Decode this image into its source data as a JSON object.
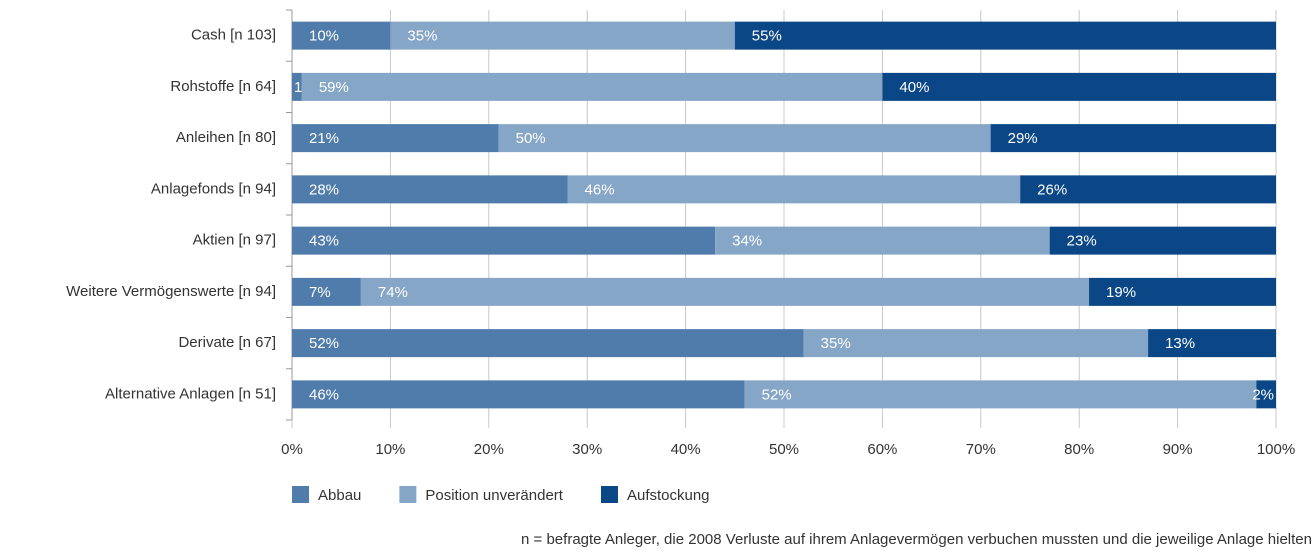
{
  "chart_data": {
    "type": "bar",
    "orientation": "horizontal",
    "stacked": true,
    "categories": [
      "Cash [n 103]",
      "Rohstoffe [n 64]",
      "Anleihen [n 80]",
      "Anlagefonds [n 94]",
      "Aktien [n 97]",
      "Weitere Vermögenswerte [n 94]",
      "Derivate [n 67]",
      "Alternative Anlagen [n 51]"
    ],
    "series": [
      {
        "name": "Abbau",
        "color": "#4f7cab",
        "values": [
          10,
          1,
          21,
          28,
          43,
          7,
          52,
          46
        ],
        "value_labels": [
          "10%",
          "1%",
          "21%",
          "28%",
          "43%",
          "7%",
          "52%",
          "46%"
        ]
      },
      {
        "name": "Position unverändert",
        "color": "#86a6c8",
        "values": [
          35,
          59,
          50,
          46,
          34,
          74,
          35,
          52
        ],
        "value_labels": [
          "35%",
          "59%",
          "50%",
          "46%",
          "34%",
          "74%",
          "35%",
          "52%"
        ]
      },
      {
        "name": "Aufstockung",
        "color": "#0b4786",
        "values": [
          55,
          40,
          29,
          26,
          23,
          19,
          13,
          2
        ],
        "value_labels": [
          "55%",
          "40%",
          "29%",
          "26%",
          "23%",
          "19%",
          "13%",
          "2%"
        ]
      }
    ],
    "xlim": [
      0,
      100
    ],
    "xticks": [
      {
        "value": 0,
        "label": "0%"
      },
      {
        "value": 10,
        "label": "10%"
      },
      {
        "value": 20,
        "label": "20%"
      },
      {
        "value": 30,
        "label": "30%"
      },
      {
        "value": 40,
        "label": "40%"
      },
      {
        "value": 50,
        "label": "50%"
      },
      {
        "value": 60,
        "label": "60%"
      },
      {
        "value": 70,
        "label": "70%"
      },
      {
        "value": 80,
        "label": "80%"
      },
      {
        "value": 90,
        "label": "90%"
      },
      {
        "value": 100,
        "label": "100%"
      }
    ],
    "grid": true,
    "legend": "bottom",
    "footnote": "n = befragte Anleger, die 2008 Verluste auf ihrem Anlagevermögen verbuchen mussten und die jeweilige Anlage hielten"
  }
}
